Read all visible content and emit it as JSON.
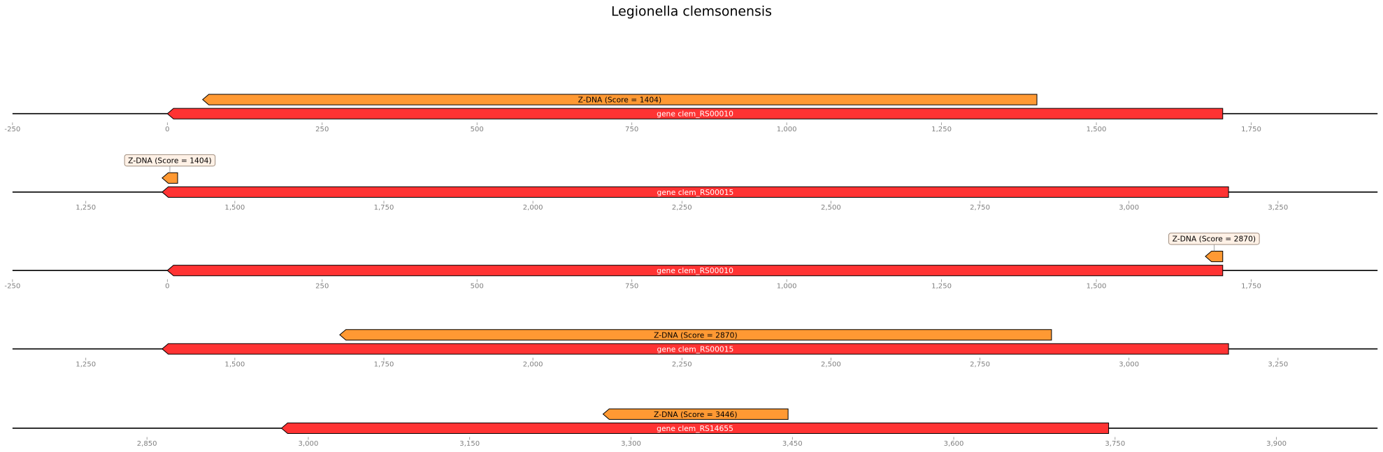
{
  "chart_data": {
    "type": "genome-feature-tracks",
    "title": "Legionella clemsonensis",
    "colors": {
      "gene": "#ff3333",
      "zdna": "#ff9933",
      "axis": "#808080",
      "label_box": "#fff1e6"
    },
    "panels": [
      {
        "xlim": [
          -250,
          1954
        ],
        "ticks": [
          -250,
          0,
          250,
          500,
          750,
          1000,
          1250,
          1500,
          1750
        ],
        "tick_labels": [
          "-250",
          "0",
          "250",
          "500",
          "750",
          "1,000",
          "1,250",
          "1,500",
          "1,750"
        ],
        "features": [
          {
            "label": "gene clem_RS00010",
            "start": 1,
            "end": 1704,
            "strand": -1,
            "kind": "gene",
            "level": 0,
            "label_style": "inline"
          },
          {
            "label": "Z-DNA (Score = 1404)",
            "start": 58,
            "end": 1404,
            "strand": -1,
            "kind": "zdna",
            "level": 1,
            "label_style": "inline"
          }
        ]
      },
      {
        "xlim": [
          1127,
          3417
        ],
        "ticks": [
          1250,
          1500,
          1750,
          2000,
          2250,
          2500,
          2750,
          3000,
          3250
        ],
        "tick_labels": [
          "1,250",
          "1,500",
          "1,750",
          "2,000",
          "2,250",
          "2,500",
          "2,750",
          "3,000",
          "3,250"
        ],
        "features": [
          {
            "label": "gene clem_RS00015",
            "start": 1379,
            "end": 3167,
            "strand": -1,
            "kind": "gene",
            "level": 0,
            "label_style": "inline"
          },
          {
            "label": "Z-DNA (Score = 1404)",
            "start": 1379,
            "end": 1404,
            "strand": -1,
            "kind": "zdna",
            "level": 1,
            "label_style": "box"
          }
        ]
      },
      {
        "xlim": [
          -250,
          1954
        ],
        "ticks": [
          -250,
          0,
          250,
          500,
          750,
          1000,
          1250,
          1500,
          1750
        ],
        "tick_labels": [
          "-250",
          "0",
          "250",
          "500",
          "750",
          "1,000",
          "1,250",
          "1,500",
          "1,750"
        ],
        "features": [
          {
            "label": "gene clem_RS00010",
            "start": 1,
            "end": 1704,
            "strand": -1,
            "kind": "gene",
            "level": 0,
            "label_style": "inline"
          },
          {
            "label": "Z-DNA (Score = 2870)",
            "start": 1677,
            "end": 1704,
            "strand": -1,
            "kind": "zdna",
            "level": 1,
            "label_style": "box"
          }
        ]
      },
      {
        "xlim": [
          1127,
          3417
        ],
        "ticks": [
          1250,
          1500,
          1750,
          2000,
          2250,
          2500,
          2750,
          3000,
          3250
        ],
        "tick_labels": [
          "1,250",
          "1,500",
          "1,750",
          "2,000",
          "2,250",
          "2,500",
          "2,750",
          "3,000",
          "3,250"
        ],
        "features": [
          {
            "label": "gene clem_RS00015",
            "start": 1379,
            "end": 3167,
            "strand": -1,
            "kind": "gene",
            "level": 0,
            "label_style": "inline"
          },
          {
            "label": "Z-DNA (Score = 2870)",
            "start": 1677,
            "end": 2870,
            "strand": -1,
            "kind": "zdna",
            "level": 1,
            "label_style": "inline"
          }
        ]
      },
      {
        "xlim": [
          2725,
          3994
        ],
        "ticks": [
          2850,
          3000,
          3150,
          3300,
          3450,
          3600,
          3750,
          3900
        ],
        "tick_labels": [
          "2,850",
          "3,000",
          "3,150",
          "3,300",
          "3,450",
          "3,600",
          "3,750",
          "3,900"
        ],
        "features": [
          {
            "label": "gene clem_RS14655",
            "start": 2976,
            "end": 3744,
            "strand": -1,
            "kind": "gene",
            "level": 0,
            "label_style": "inline"
          },
          {
            "label": "Z-DNA (Score = 3446)",
            "start": 3275,
            "end": 3446,
            "strand": -1,
            "kind": "zdna",
            "level": 1,
            "label_style": "inline"
          }
        ]
      }
    ]
  }
}
